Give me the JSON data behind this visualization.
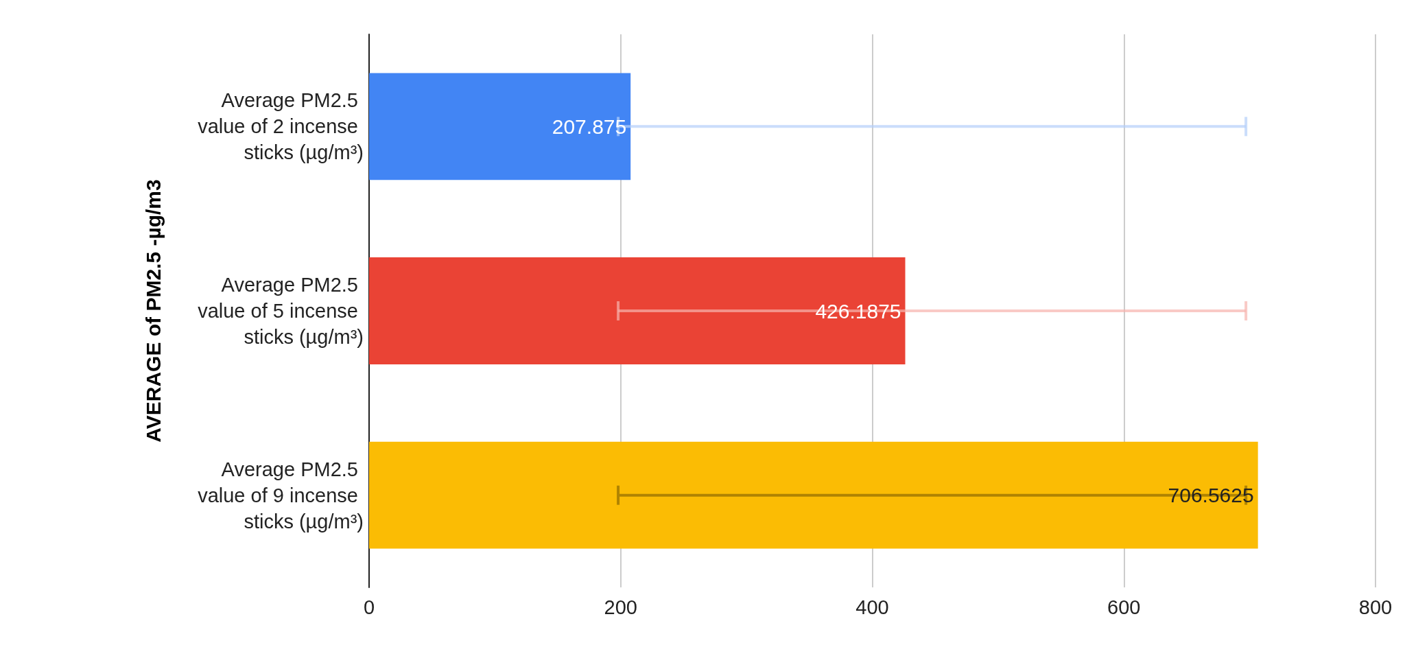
{
  "chart_data": {
    "type": "bar",
    "orientation": "horizontal",
    "ylabel": "AVERAGE of PM2.5 -µg/m3",
    "categories": [
      "Average PM2.5 value of 2 incense sticks (µg/m³)",
      "Average PM2.5 value of 5 incense sticks (µg/m³)",
      "Average PM2.5 value of 9 incense sticks (µg/m³)"
    ],
    "values": [
      207.875,
      426.1875,
      706.5625
    ],
    "colors": [
      "#4285f4",
      "#ea4335",
      "#fbbc04"
    ],
    "errors": [
      [
        198,
        697
      ],
      [
        198,
        697
      ],
      [
        198,
        697
      ]
    ],
    "xlim": [
      0,
      800
    ],
    "xticks": [
      0,
      200,
      400,
      600,
      800
    ],
    "grid": "x",
    "data_labels": true
  }
}
